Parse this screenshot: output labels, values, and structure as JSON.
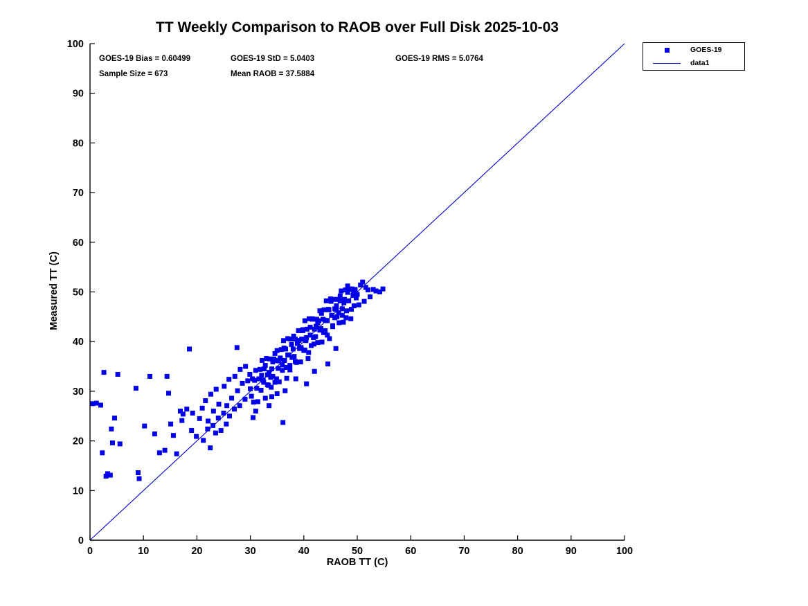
{
  "title": "TT Weekly Comparison to RAOB over Full Disk 2025-10-03",
  "stats": {
    "bias": "GOES-19 Bias = 0.60499",
    "std": "GOES-19 StD = 5.0403",
    "rms": "GOES-19 RMS = 5.0764",
    "sample": "Sample Size = 673",
    "mean_raob": "Mean RAOB = 37.5884"
  },
  "legend": {
    "marker_label": "GOES-19",
    "line_label": "data1"
  },
  "colors": {
    "marker": "#0000e6",
    "line": "#0000c8",
    "axis": "#000000"
  },
  "chart_data": {
    "type": "scatter",
    "title": "TT Weekly Comparison to RAOB over Full Disk 2025-10-03",
    "xlabel": "RAOB TT (C)",
    "ylabel": "Measured TT (C)",
    "xlim": [
      0,
      100
    ],
    "ylim": [
      0,
      100
    ],
    "xticks": [
      0,
      10,
      20,
      30,
      40,
      50,
      60,
      70,
      80,
      90,
      100
    ],
    "yticks": [
      0,
      10,
      20,
      30,
      40,
      50,
      60,
      70,
      80,
      90,
      100
    ],
    "grid": false,
    "legend_position": "outside-top-right",
    "reference_line": {
      "name": "data1",
      "from": [
        0,
        0
      ],
      "to": [
        100,
        100
      ]
    },
    "annotations": [
      "GOES-19 Bias = 0.60499",
      "GOES-19 StD = 5.0403",
      "GOES-19 RMS = 5.0764",
      "Sample Size = 673",
      "Mean RAOB = 37.5884"
    ],
    "series": [
      {
        "name": "GOES-19",
        "marker": "square",
        "sample_size_shown": 673,
        "points": [
          [
            0.5,
            27.5
          ],
          [
            1.2,
            27.6
          ],
          [
            2.0,
            27.2
          ],
          [
            2.3,
            17.6
          ],
          [
            2.6,
            33.8
          ],
          [
            3.0,
            12.9
          ],
          [
            3.3,
            13.4
          ],
          [
            3.8,
            13.1
          ],
          [
            4.0,
            22.4
          ],
          [
            4.2,
            19.6
          ],
          [
            4.6,
            24.6
          ],
          [
            5.2,
            33.4
          ],
          [
            5.6,
            19.4
          ],
          [
            8.6,
            30.6
          ],
          [
            9.0,
            13.6
          ],
          [
            9.2,
            12.4
          ],
          [
            10.2,
            23.0
          ],
          [
            11.2,
            33.0
          ],
          [
            12.1,
            21.4
          ],
          [
            13.0,
            17.6
          ],
          [
            14.0,
            18.1
          ],
          [
            14.4,
            33.0
          ],
          [
            14.7,
            29.6
          ],
          [
            15.1,
            23.4
          ],
          [
            15.6,
            21.1
          ],
          [
            16.2,
            17.4
          ],
          [
            16.9,
            26.0
          ],
          [
            17.4,
            25.4
          ],
          [
            17.2,
            24.1
          ],
          [
            18.1,
            26.4
          ],
          [
            18.6,
            38.5
          ],
          [
            19.0,
            22.1
          ],
          [
            19.2,
            25.6
          ],
          [
            19.9,
            20.9
          ],
          [
            20.5,
            24.5
          ],
          [
            21.0,
            26.6
          ],
          [
            21.2,
            20.1
          ],
          [
            21.6,
            28.1
          ],
          [
            22.0,
            22.4
          ],
          [
            22.1,
            24.0
          ],
          [
            22.5,
            18.6
          ],
          [
            22.6,
            29.4
          ],
          [
            23.0,
            23.1
          ],
          [
            23.1,
            26.0
          ],
          [
            23.5,
            21.6
          ],
          [
            23.6,
            30.4
          ],
          [
            24.0,
            24.6
          ],
          [
            24.1,
            27.4
          ],
          [
            24.5,
            22.1
          ],
          [
            25.0,
            25.6
          ],
          [
            25.1,
            31.0
          ],
          [
            25.5,
            23.4
          ],
          [
            25.6,
            27.1
          ],
          [
            26.0,
            32.4
          ],
          [
            26.1,
            25.0
          ],
          [
            26.5,
            28.6
          ],
          [
            27.0,
            26.4
          ],
          [
            27.1,
            33.0
          ],
          [
            27.5,
            38.8
          ],
          [
            27.6,
            30.1
          ],
          [
            28.0,
            27.1
          ],
          [
            28.1,
            34.4
          ],
          [
            28.5,
            31.6
          ],
          [
            29.0,
            28.4
          ],
          [
            29.1,
            35.0
          ],
          [
            29.5,
            32.1
          ],
          [
            29.9,
            33.4
          ],
          [
            30.0,
            30.5
          ],
          [
            30.2,
            29.0
          ],
          [
            30.4,
            32.5
          ],
          [
            30.6,
            27.8
          ],
          [
            30.8,
            32.2
          ],
          [
            31.0,
            34.2
          ],
          [
            31.2,
            30.6
          ],
          [
            31.4,
            27.9
          ],
          [
            31.6,
            32.5
          ],
          [
            31.8,
            34.4
          ],
          [
            32.0,
            30.2
          ],
          [
            32.2,
            36.2
          ],
          [
            32.4,
            32.2
          ],
          [
            32.6,
            34.5
          ],
          [
            32.8,
            28.6
          ],
          [
            33.0,
            36.6
          ],
          [
            33.2,
            33.3
          ],
          [
            33.4,
            31.2
          ],
          [
            33.6,
            36.5
          ],
          [
            33.8,
            32.8
          ],
          [
            34.0,
            34.5
          ],
          [
            34.2,
            33.0
          ],
          [
            34.4,
            36.5
          ],
          [
            34.6,
            31.8
          ],
          [
            34.8,
            36.2
          ],
          [
            35.0,
            38.2
          ],
          [
            35.2,
            34.6
          ],
          [
            35.4,
            31.9
          ],
          [
            35.6,
            36.5
          ],
          [
            35.8,
            38.4
          ],
          [
            36.0,
            34.2
          ],
          [
            36.2,
            40.2
          ],
          [
            36.4,
            36.2
          ],
          [
            36.6,
            38.5
          ],
          [
            36.8,
            32.6
          ],
          [
            37.0,
            40.6
          ],
          [
            37.2,
            37.3
          ],
          [
            37.4,
            35.2
          ],
          [
            37.6,
            40.5
          ],
          [
            37.8,
            36.8
          ],
          [
            38.0,
            38.5
          ],
          [
            38.2,
            37.0
          ],
          [
            38.4,
            40.5
          ],
          [
            38.6,
            35.8
          ],
          [
            38.8,
            40.2
          ],
          [
            39.0,
            42.2
          ],
          [
            39.2,
            38.6
          ],
          [
            39.4,
            35.9
          ],
          [
            39.6,
            40.5
          ],
          [
            39.8,
            42.4
          ],
          [
            40.0,
            38.2
          ],
          [
            40.2,
            44.2
          ],
          [
            40.4,
            40.2
          ],
          [
            40.6,
            42.5
          ],
          [
            40.8,
            36.6
          ],
          [
            41.0,
            44.6
          ],
          [
            41.2,
            41.3
          ],
          [
            41.4,
            39.2
          ],
          [
            41.6,
            44.5
          ],
          [
            41.8,
            40.8
          ],
          [
            42.0,
            42.5
          ],
          [
            42.2,
            41.0
          ],
          [
            42.4,
            44.5
          ],
          [
            42.6,
            39.8
          ],
          [
            42.8,
            44.2
          ],
          [
            43.0,
            46.2
          ],
          [
            43.2,
            42.6
          ],
          [
            43.4,
            39.9
          ],
          [
            43.6,
            44.5
          ],
          [
            43.8,
            46.4
          ],
          [
            44.0,
            42.2
          ],
          [
            44.2,
            48.2
          ],
          [
            44.4,
            44.2
          ],
          [
            44.6,
            46.5
          ],
          [
            44.8,
            40.6
          ],
          [
            45.0,
            48.6
          ],
          [
            45.2,
            45.3
          ],
          [
            45.4,
            43.2
          ],
          [
            45.6,
            48.5
          ],
          [
            45.8,
            44.8
          ],
          [
            46.0,
            46.5
          ],
          [
            46.2,
            45.0
          ],
          [
            46.4,
            48.5
          ],
          [
            46.6,
            43.8
          ],
          [
            46.8,
            48.2
          ],
          [
            47.0,
            50.2
          ],
          [
            47.2,
            46.6
          ],
          [
            47.4,
            43.9
          ],
          [
            47.6,
            48.5
          ],
          [
            47.8,
            50.4
          ],
          [
            48.0,
            46.2
          ],
          [
            48.2,
            51.2
          ],
          [
            48.4,
            48.2
          ],
          [
            48.6,
            50.5
          ],
          [
            48.8,
            44.6
          ],
          [
            49.0,
            50.6
          ],
          [
            49.2,
            49.3
          ],
          [
            49.4,
            47.2
          ],
          [
            49.6,
            50.5
          ],
          [
            49.8,
            48.8
          ],
          [
            32.1,
            33.2
          ],
          [
            32.5,
            31.8
          ],
          [
            32.8,
            35.2
          ],
          [
            33.2,
            31.3
          ],
          [
            33.5,
            33.8
          ],
          [
            33.9,
            30.8
          ],
          [
            34.2,
            35.9
          ],
          [
            34.6,
            37.6
          ],
          [
            34.9,
            32.5
          ],
          [
            35.3,
            36.1
          ],
          [
            35.6,
            36.7
          ],
          [
            36.0,
            35.3
          ],
          [
            36.3,
            38.7
          ],
          [
            36.7,
            34.8
          ],
          [
            37.0,
            37.3
          ],
          [
            37.4,
            34.3
          ],
          [
            37.7,
            39.4
          ],
          [
            38.1,
            41.1
          ],
          [
            38.4,
            36.0
          ],
          [
            38.8,
            39.6
          ],
          [
            39.1,
            40.2
          ],
          [
            39.5,
            38.8
          ],
          [
            39.8,
            42.2
          ],
          [
            40.2,
            38.3
          ],
          [
            40.5,
            40.8
          ],
          [
            40.9,
            37.8
          ],
          [
            41.2,
            42.9
          ],
          [
            41.6,
            44.6
          ],
          [
            41.9,
            39.5
          ],
          [
            42.3,
            43.1
          ],
          [
            42.6,
            43.7
          ],
          [
            43.0,
            42.3
          ],
          [
            43.3,
            45.7
          ],
          [
            43.7,
            41.8
          ],
          [
            44.0,
            44.3
          ],
          [
            44.4,
            41.3
          ],
          [
            44.7,
            46.4
          ],
          [
            45.1,
            48.1
          ],
          [
            45.4,
            43.0
          ],
          [
            45.8,
            46.6
          ],
          [
            46.1,
            47.2
          ],
          [
            46.5,
            45.8
          ],
          [
            46.8,
            49.2
          ],
          [
            47.2,
            45.3
          ],
          [
            47.5,
            47.8
          ],
          [
            47.9,
            44.8
          ],
          [
            48.2,
            49.9
          ],
          [
            48.6,
            50.6
          ],
          [
            48.9,
            46.5
          ],
          [
            49.3,
            50.1
          ],
          [
            30.5,
            24.7
          ],
          [
            31.0,
            26.0
          ],
          [
            33.5,
            27.1
          ],
          [
            34.0,
            28.9
          ],
          [
            35.0,
            29.5
          ],
          [
            36.1,
            23.7
          ],
          [
            36.5,
            30.1
          ],
          [
            38.5,
            32.5
          ],
          [
            40.5,
            31.5
          ],
          [
            42.0,
            34.0
          ],
          [
            44.5,
            35.5
          ],
          [
            46.0,
            38.6
          ],
          [
            50.0,
            49.5
          ],
          [
            50.3,
            47.4
          ],
          [
            50.6,
            51.4
          ],
          [
            51.0,
            52.0
          ],
          [
            51.3,
            48.1
          ],
          [
            51.6,
            50.9
          ],
          [
            52.0,
            50.4
          ],
          [
            52.4,
            49.0
          ],
          [
            53.0,
            50.5
          ],
          [
            53.5,
            50.2
          ],
          [
            54.2,
            50.0
          ],
          [
            54.8,
            50.6
          ]
        ]
      }
    ]
  }
}
